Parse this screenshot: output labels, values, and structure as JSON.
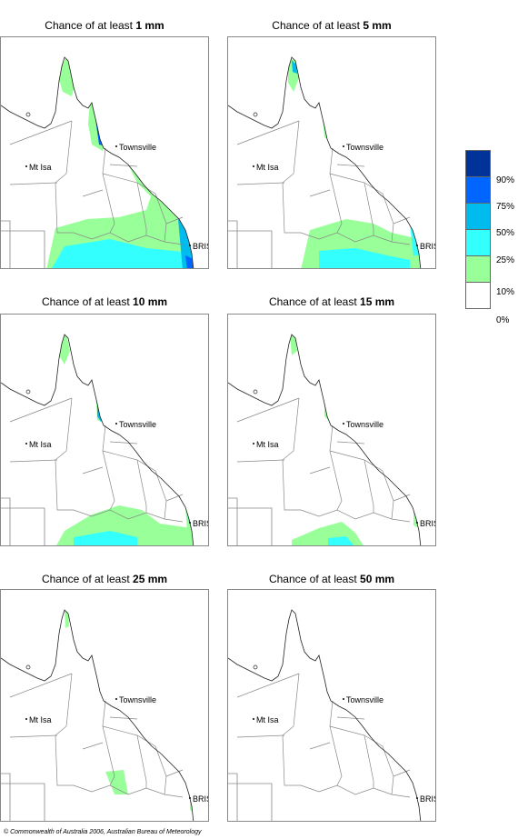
{
  "panels": [
    {
      "prefix": "Chance of at least ",
      "amount": "1 mm"
    },
    {
      "prefix": "Chance of at least ",
      "amount": "5 mm"
    },
    {
      "prefix": "Chance of at least ",
      "amount": "10 mm"
    },
    {
      "prefix": "Chance of at least ",
      "amount": "15 mm"
    },
    {
      "prefix": "Chance of at least ",
      "amount": "25 mm"
    },
    {
      "prefix": "Chance of at least ",
      "amount": "50 mm"
    }
  ],
  "places": {
    "townsville": "Townsville",
    "mt_isa": "Mt Isa",
    "bris": "BRIS"
  },
  "legend": {
    "colors": [
      "#003399",
      "#0066ff",
      "#00bbee",
      "#33ffff",
      "#99ff99",
      "#ffffff"
    ],
    "labels": [
      "90%",
      "75%",
      "50%",
      "25%",
      "10%",
      "0%"
    ]
  },
  "footer": "© Commonwealth of Australia 2006, Australian Bureau of Meteorology"
}
